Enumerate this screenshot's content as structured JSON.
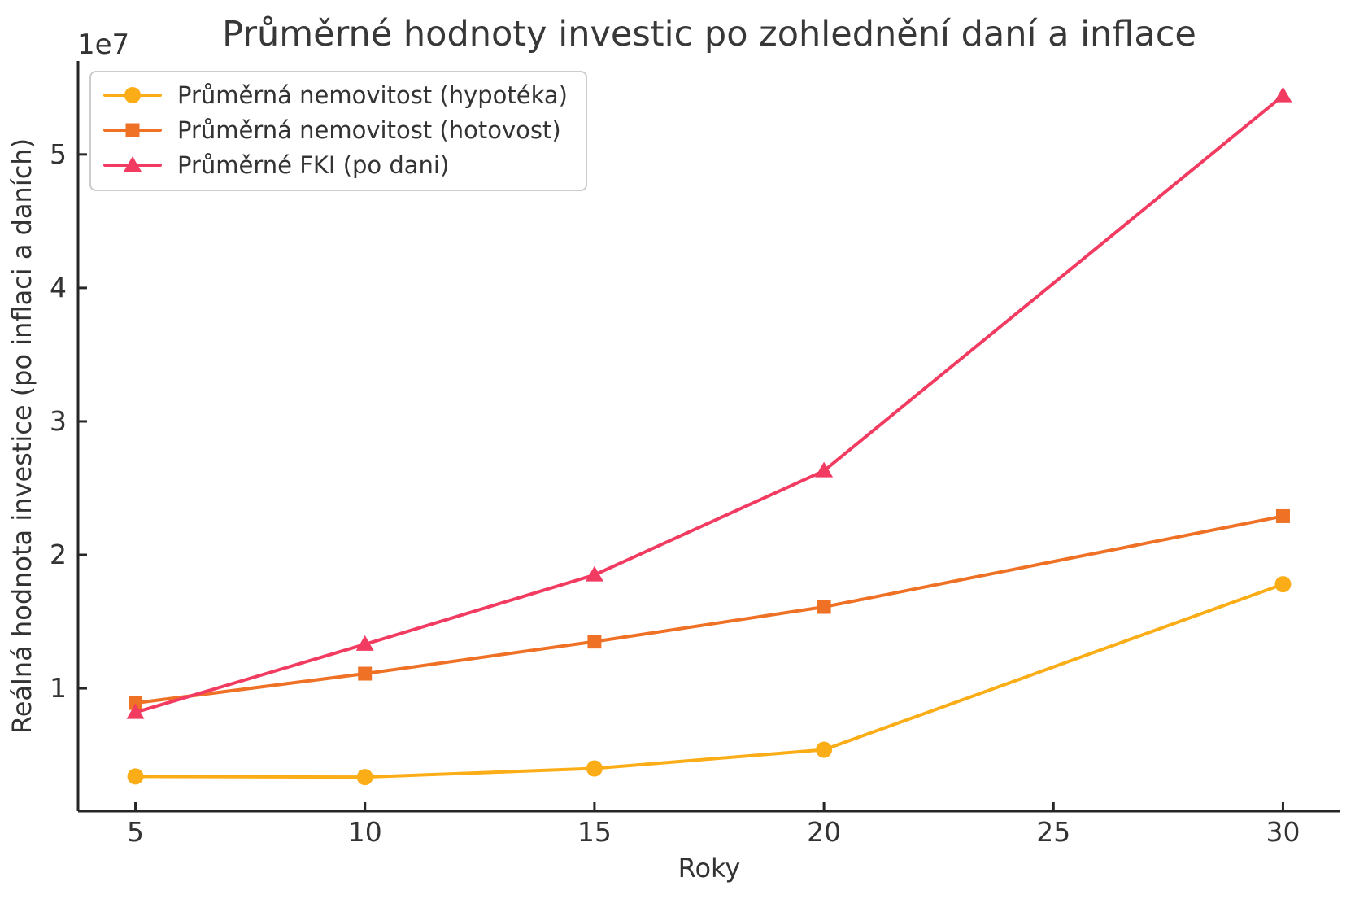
{
  "figure": {
    "background": "#ffffff",
    "axis_color": "#262626",
    "text_color": "#333333",
    "title_color": "#383838"
  },
  "chart_data": {
    "type": "line",
    "title": "Průměrné hodnoty investic po zohlednění daní a inflace",
    "xlabel": "Roky",
    "ylabel": "Reálná hodnota investice (po inflaci a daních)",
    "y_offset_label": "1e7",
    "x": [
      5,
      10,
      15,
      20,
      30
    ],
    "series": [
      {
        "id": "prumerna-nemovitost-hypoteka",
        "name": "Průměrná nemovitost (hypotéka)",
        "color": "#FBAD18",
        "marker": "circle",
        "values": [
          3400000,
          3350000,
          4000000,
          5400000,
          17800000
        ]
      },
      {
        "id": "prumerna-nemovitost-hotovost",
        "name": "Průměrná nemovitost (hotovost)",
        "color": "#EE7125",
        "marker": "square",
        "values": [
          8900000,
          11100000,
          13500000,
          16100000,
          22900000
        ]
      },
      {
        "id": "prumerne-fki-po-dani",
        "name": "Průměrné FKI (po dani)",
        "color": "#F23B61",
        "marker": "triangle",
        "values": [
          8200000,
          13300000,
          18500000,
          26300000,
          54400000
        ]
      }
    ],
    "x_ticks": {
      "values": [
        5,
        10,
        15,
        20,
        25,
        30
      ],
      "labels": [
        "5",
        "10",
        "15",
        "20",
        "25",
        "30"
      ]
    },
    "y_ticks": {
      "values": [
        10000000,
        20000000,
        30000000,
        40000000,
        50000000
      ],
      "labels": [
        "1",
        "2",
        "3",
        "4",
        "5"
      ]
    },
    "xlim": [
      3.75,
      31.25
    ],
    "ylim": [
      800000,
      57000000
    ],
    "grid": false,
    "legend_position": "upper left"
  }
}
